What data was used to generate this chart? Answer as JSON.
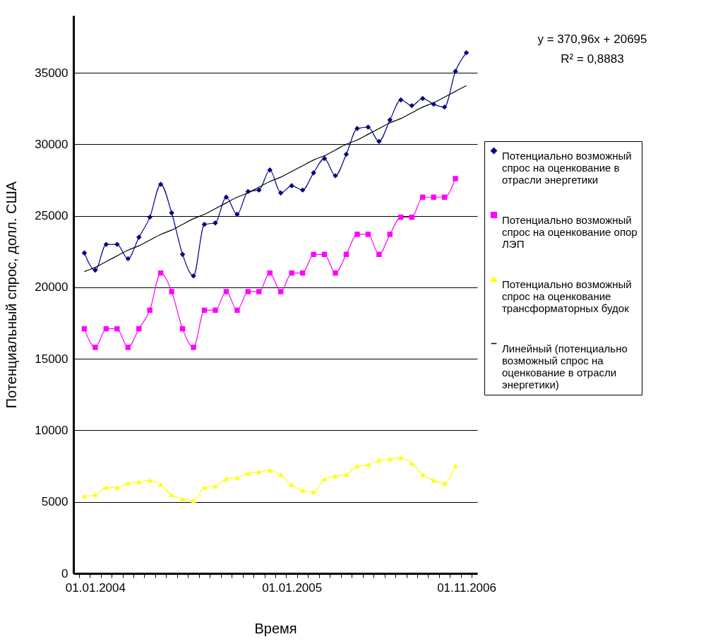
{
  "chart_data": {
    "type": "line",
    "xlabel": "Время",
    "ylabel": "Потенциальный спрос,  долл. США",
    "categories": [
      null,
      "01.01.2004",
      null,
      null,
      null,
      null,
      null,
      null,
      null,
      null,
      null,
      null,
      null,
      null,
      null,
      null,
      null,
      null,
      null,
      "01.01.2005",
      null,
      null,
      null,
      null,
      null,
      null,
      null,
      null,
      null,
      null,
      null,
      null,
      null,
      null,
      null,
      "01.11.2006"
    ],
    "series": [
      {
        "name": "Потенциально возможный спрос на оценкование в отрасли энергетики",
        "color": "#000080",
        "marker": "diamond",
        "values": [
          22400,
          21200,
          23000,
          23000,
          22000,
          23500,
          24900,
          27200,
          25200,
          22300,
          20800,
          24400,
          24500,
          26300,
          25100,
          26700,
          26800,
          28200,
          26600,
          27100,
          26800,
          28000,
          29000,
          27800,
          29300,
          31100,
          31200,
          30200,
          31700,
          33100,
          32700,
          33200,
          32800,
          32600,
          35100,
          36400
        ]
      },
      {
        "name": "Потенциально возможный спрос на оценкование опор ЛЭП",
        "color": "#ff00ff",
        "marker": "square",
        "values": [
          17100,
          15800,
          17100,
          17100,
          15800,
          17100,
          18400,
          21000,
          19700,
          17100,
          15800,
          18400,
          18400,
          19700,
          18400,
          19700,
          19700,
          21000,
          19700,
          21000,
          21000,
          22300,
          22300,
          21000,
          22300,
          23700,
          23700,
          22300,
          23700,
          24900,
          24900,
          26300,
          26300,
          26300,
          27600,
          null
        ]
      },
      {
        "name": "Потенциально возможный спрос на оценкование трансформаторных будок",
        "color": "#ffff00",
        "marker": "triangle",
        "values": [
          5400,
          5500,
          6000,
          6000,
          6300,
          6400,
          6500,
          6200,
          5500,
          5200,
          5100,
          6000,
          6100,
          6600,
          6700,
          7000,
          7100,
          7200,
          6900,
          6200,
          5800,
          5700,
          6600,
          6800,
          6900,
          7500,
          7600,
          7900,
          8000,
          8100,
          7700,
          6900,
          6500,
          6300,
          7500,
          null
        ]
      },
      {
        "name": "Линейный (потенциально возможный спрос на оценкование в отрасли энергетики)",
        "color": "#000000",
        "marker": "none",
        "values": [
          21100,
          21400,
          21800,
          22200,
          22600,
          22900,
          23300,
          23700,
          24000,
          24400,
          24800,
          25100,
          25500,
          25900,
          26300,
          26600,
          27000,
          27400,
          27700,
          28100,
          28500,
          28900,
          29200,
          29600,
          30000,
          30300,
          30700,
          31100,
          31500,
          31800,
          32200,
          32600,
          32900,
          33300,
          33700,
          34100
        ]
      }
    ],
    "ylim": [
      0,
      39000
    ],
    "yticks": [
      0,
      5000,
      10000,
      15000,
      20000,
      25000,
      30000,
      35000
    ],
    "grid": "y",
    "legend": "right",
    "annotations": [
      "y = 370,96x + 20695",
      "R² = 0,8883"
    ]
  }
}
